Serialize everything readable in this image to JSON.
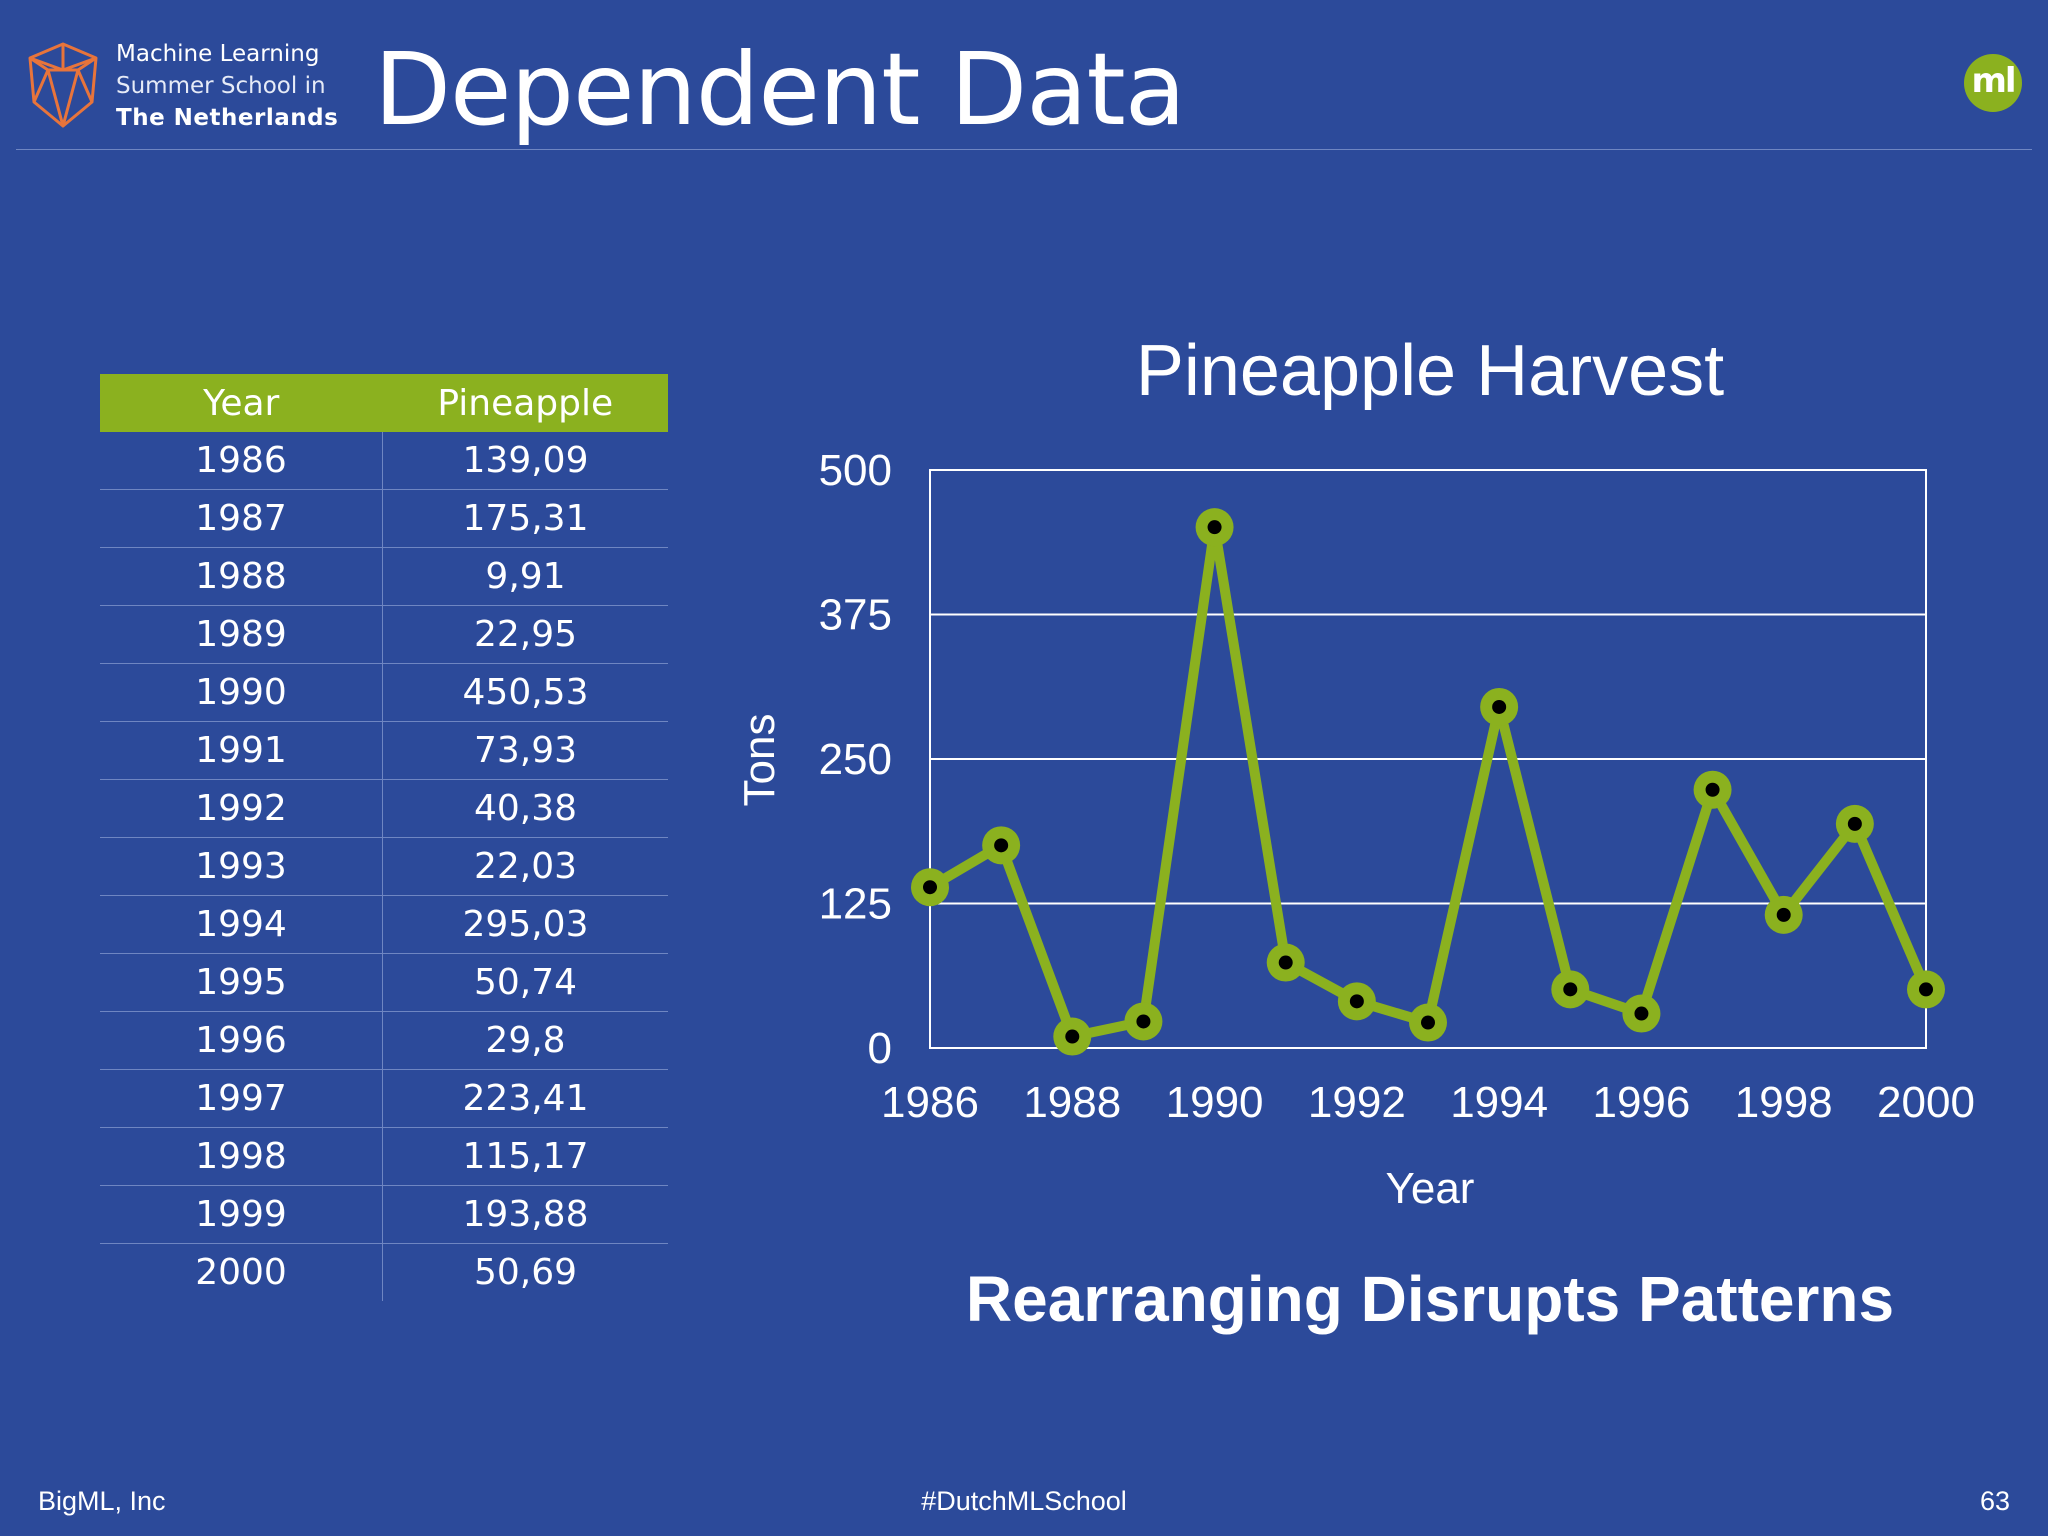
{
  "header": {
    "org_line1": "Machine Learning",
    "org_line2": "Summer School in",
    "org_line3": "The  Netherlands",
    "slide_title": "Dependent Data",
    "badge_text": "ml",
    "accent_color": "#8bb11f",
    "background_color": "#2c4a9a",
    "logo_color": "#e8743b"
  },
  "table": {
    "headers": [
      "Year",
      "Pineapple"
    ],
    "rows": [
      [
        "1986",
        "139,09"
      ],
      [
        "1987",
        "175,31"
      ],
      [
        "1988",
        "9,91"
      ],
      [
        "1989",
        "22,95"
      ],
      [
        "1990",
        "450,53"
      ],
      [
        "1991",
        "73,93"
      ],
      [
        "1992",
        "40,38"
      ],
      [
        "1993",
        "22,03"
      ],
      [
        "1994",
        "295,03"
      ],
      [
        "1995",
        "50,74"
      ],
      [
        "1996",
        "29,8"
      ],
      [
        "1997",
        "223,41"
      ],
      [
        "1998",
        "115,17"
      ],
      [
        "1999",
        "193,88"
      ],
      [
        "2000",
        "50,69"
      ]
    ]
  },
  "chart_data": {
    "type": "line",
    "title": "Pineapple Harvest",
    "xlabel": "Year",
    "ylabel": "Tons",
    "x": [
      1986,
      1987,
      1988,
      1989,
      1990,
      1991,
      1992,
      1993,
      1994,
      1995,
      1996,
      1997,
      1998,
      1999,
      2000
    ],
    "series": [
      {
        "values": [
          139.09,
          175.31,
          9.91,
          22.95,
          450.53,
          73.93,
          40.38,
          22.03,
          295.03,
          50.74,
          29.8,
          223.41,
          115.17,
          193.88,
          50.69
        ],
        "color": "#8bb11f",
        "marker_color": "#000000"
      }
    ],
    "xticks": [
      "1986",
      "1988",
      "1990",
      "1992",
      "1994",
      "1996",
      "1998",
      "2000"
    ],
    "yticks": [
      "0",
      "125",
      "250",
      "375",
      "500"
    ],
    "xlim": [
      1986,
      2000
    ],
    "ylim": [
      0,
      500
    ],
    "grid": "horizontal",
    "legend": "none"
  },
  "tagline": "Rearranging Disrupts Patterns",
  "footer": {
    "left": "BigML, Inc",
    "center": "#DutchMLSchool",
    "page_number": "63"
  }
}
